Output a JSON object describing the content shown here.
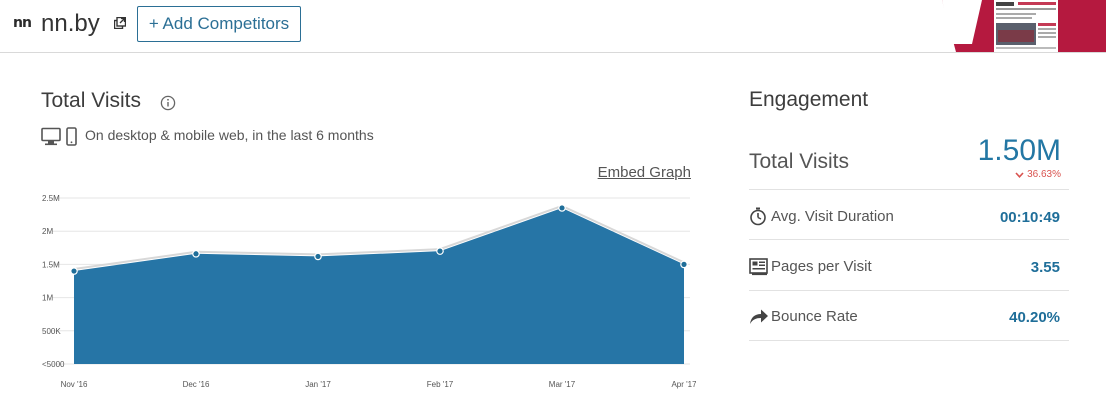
{
  "header": {
    "site_name": "nn.by",
    "add_competitors_label": "+ Add Competitors",
    "favicon_text": "nn"
  },
  "visits": {
    "title": "Total Visits",
    "subtitle": "On desktop & mobile web, in the last 6 months",
    "embed_label": "Embed Graph"
  },
  "chart_data": {
    "type": "area",
    "categories": [
      "Nov '16",
      "Dec '16",
      "Jan '17",
      "Feb '17",
      "Mar '17",
      "Apr '17"
    ],
    "values": [
      1400000,
      1660000,
      1620000,
      1700000,
      2350000,
      1500000
    ],
    "y_ticks": [
      "2.5M",
      "2M",
      "1.5M",
      "1M",
      "500K",
      "<5000"
    ],
    "ylim": [
      0,
      2500000
    ],
    "grid": true,
    "color": "#2675a6"
  },
  "engagement": {
    "title": "Engagement",
    "total_visits_label": "Total Visits",
    "total_visits_value": "1.50M",
    "change_value": "36.63%",
    "change_color": "#d9534f",
    "metrics": [
      {
        "label": "Avg. Visit Duration",
        "value": "00:10:49",
        "icon": "stopwatch-icon"
      },
      {
        "label": "Pages per Visit",
        "value": "3.55",
        "icon": "pages-icon"
      },
      {
        "label": "Bounce Rate",
        "value": "40.20%",
        "icon": "bounce-arrow-icon"
      }
    ]
  }
}
